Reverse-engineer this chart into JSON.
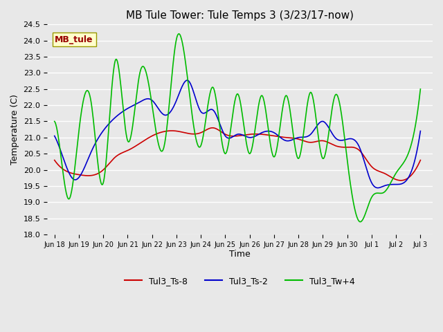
{
  "title": "MB Tule Tower: Tule Temps 3 (3/23/17-now)",
  "xlabel": "Time",
  "ylabel": "Temperature (C)",
  "ylim": [
    18.0,
    24.5
  ],
  "yticks": [
    18.0,
    18.5,
    19.0,
    19.5,
    20.0,
    20.5,
    21.0,
    21.5,
    22.0,
    22.5,
    23.0,
    23.5,
    24.0,
    24.5
  ],
  "bg_color": "#e8e8e8",
  "grid_color": "#ffffff",
  "line_red": "#cc0000",
  "line_blue": "#0000cc",
  "line_green": "#00bb00",
  "legend_label_red": "Tul3_Ts-8",
  "legend_label_blue": "Tul3_Ts-2",
  "legend_label_green": "Tul3_Tw+4",
  "watermark_text": "MB_tule",
  "xtick_labels": [
    "Jun 18",
    "Jun 19",
    "Jun 20",
    "Jun 21",
    "Jun 22",
    "Jun 23",
    "Jun 24",
    "Jun 25",
    "Jun 26",
    "Jun 27",
    "Jun 28",
    "Jun 29",
    "Jun 30",
    "Jul 1",
    "Jul 2",
    "Jul 3"
  ],
  "red_wp_x": [
    0,
    0.3,
    1.0,
    2.0,
    2.5,
    3.0,
    4.0,
    5.0,
    6.0,
    6.5,
    7.0,
    7.5,
    8.0,
    8.5,
    9.0,
    9.5,
    10.0,
    10.5,
    11.0,
    11.5,
    12.0,
    12.5,
    13.0,
    13.5,
    14.0,
    14.5,
    15.0
  ],
  "red_wp_y": [
    20.3,
    20.05,
    19.85,
    20.0,
    20.4,
    20.6,
    21.05,
    21.2,
    21.15,
    21.3,
    21.1,
    21.05,
    21.1,
    21.1,
    21.05,
    21.0,
    20.95,
    20.85,
    20.9,
    20.75,
    20.7,
    20.6,
    20.1,
    19.9,
    19.7,
    19.75,
    20.3
  ],
  "blue_wp_x": [
    0,
    0.2,
    0.8,
    1.5,
    2.2,
    3.0,
    3.5,
    4.0,
    4.5,
    5.0,
    5.5,
    6.0,
    6.5,
    7.0,
    7.5,
    8.0,
    8.5,
    9.0,
    9.5,
    10.0,
    10.5,
    11.0,
    11.5,
    12.0,
    12.5,
    13.0,
    13.5,
    14.0,
    14.5,
    15.0
  ],
  "blue_wp_y": [
    21.05,
    20.7,
    19.7,
    20.55,
    21.4,
    21.9,
    22.1,
    22.15,
    21.7,
    22.15,
    22.75,
    21.8,
    21.85,
    21.05,
    21.1,
    21.0,
    21.15,
    21.15,
    20.9,
    21.0,
    21.1,
    21.5,
    21.0,
    20.95,
    20.7,
    19.6,
    19.5,
    19.55,
    19.75,
    21.2
  ],
  "green_wp_x": [
    0,
    0.25,
    0.6,
    1.0,
    1.5,
    2.0,
    2.5,
    3.0,
    3.5,
    4.0,
    4.5,
    5.0,
    5.5,
    6.0,
    6.5,
    7.0,
    7.5,
    8.0,
    8.5,
    9.0,
    9.5,
    10.0,
    10.5,
    11.0,
    11.5,
    12.0,
    12.5,
    13.0,
    13.5,
    14.0,
    14.5,
    15.0
  ],
  "green_wp_y": [
    21.5,
    20.5,
    19.1,
    21.2,
    22.1,
    19.6,
    23.4,
    20.9,
    23.0,
    22.0,
    20.75,
    24.05,
    22.55,
    20.75,
    22.55,
    20.5,
    22.35,
    20.5,
    22.3,
    20.4,
    22.3,
    20.35,
    22.4,
    20.35,
    22.3,
    20.3,
    18.4,
    19.15,
    19.3,
    19.9,
    20.5,
    22.5
  ]
}
